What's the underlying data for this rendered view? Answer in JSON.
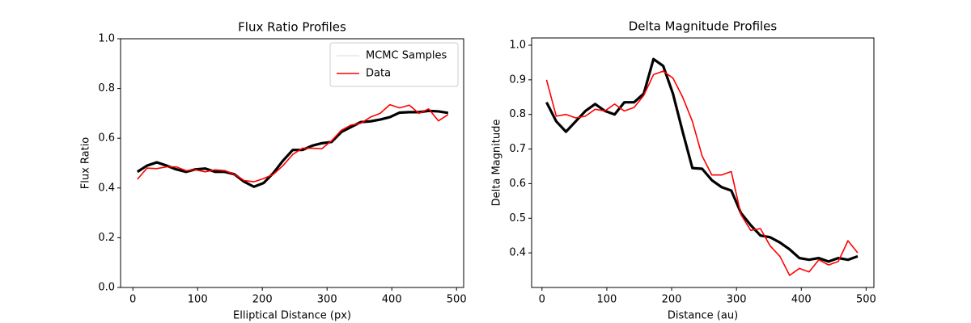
{
  "chart_data": [
    {
      "type": "line",
      "title": "Flux Ratio Profiles",
      "xlabel": "Elliptical Distance (px)",
      "ylabel": "Flux Ratio",
      "xlim": [
        -19,
        511
      ],
      "ylim": [
        0,
        1
      ],
      "xticks": [
        0,
        100,
        200,
        300,
        400,
        500
      ],
      "yticks": [
        {
          "value": 0,
          "label": "0.0"
        },
        0.2,
        0.4,
        0.6,
        0.8,
        {
          "value": 1,
          "label": "1.0"
        }
      ],
      "legend": "upper right",
      "x": [
        7,
        22,
        37,
        52,
        67,
        82,
        97,
        112,
        127,
        142,
        157,
        172,
        187,
        202,
        217,
        232,
        247,
        262,
        277,
        292,
        307,
        322,
        337,
        352,
        367,
        382,
        397,
        412,
        427,
        442,
        457,
        472,
        487
      ],
      "series": [
        {
          "name": "MCMC Samples",
          "color": "#000000",
          "alpha": 0.1,
          "values": [
            0.465,
            0.49,
            0.503,
            0.49,
            0.475,
            0.465,
            0.475,
            0.478,
            0.465,
            0.465,
            0.455,
            0.425,
            0.405,
            0.42,
            0.46,
            0.51,
            0.553,
            0.553,
            0.57,
            0.58,
            0.585,
            0.625,
            0.645,
            0.665,
            0.668,
            0.675,
            0.685,
            0.703,
            0.705,
            0.705,
            0.71,
            0.708,
            0.702
          ]
        },
        {
          "name": "Data",
          "color": "#ff0000",
          "alpha": 1,
          "values": [
            0.435,
            0.48,
            0.478,
            0.485,
            0.485,
            0.47,
            0.473,
            0.465,
            0.473,
            0.47,
            0.455,
            0.43,
            0.425,
            0.438,
            0.455,
            0.49,
            0.535,
            0.56,
            0.56,
            0.558,
            0.59,
            0.632,
            0.653,
            0.66,
            0.685,
            0.7,
            0.735,
            0.722,
            0.733,
            0.7,
            0.718,
            0.67,
            0.695
          ]
        }
      ]
    },
    {
      "type": "line",
      "title": "Delta Magnitude Profiles",
      "xlabel": "Distance (au)",
      "ylabel": "Delta Magnitude",
      "xlim": [
        -16,
        512
      ],
      "ylim": [
        0.3,
        1.021
      ],
      "xticks": [
        0,
        100,
        200,
        300,
        400,
        500
      ],
      "yticks": [
        0.4,
        0.5,
        0.6,
        0.7,
        0.8,
        0.9,
        {
          "value": 1,
          "label": "1.0"
        }
      ],
      "x": [
        7,
        22,
        37,
        52,
        67,
        82,
        97,
        112,
        127,
        142,
        157,
        172,
        187,
        202,
        217,
        232,
        247,
        262,
        277,
        292,
        307,
        322,
        337,
        352,
        367,
        382,
        397,
        412,
        427,
        442,
        457,
        472,
        487
      ],
      "series": [
        {
          "color": "#000000",
          "alpha": 0.1,
          "values": [
            0.835,
            0.78,
            0.75,
            0.78,
            0.81,
            0.83,
            0.81,
            0.8,
            0.835,
            0.835,
            0.86,
            0.96,
            0.94,
            0.86,
            0.75,
            0.645,
            0.643,
            0.61,
            0.59,
            0.58,
            0.515,
            0.48,
            0.45,
            0.445,
            0.43,
            0.41,
            0.385,
            0.38,
            0.385,
            0.375,
            0.385,
            0.38,
            0.39
          ]
        },
        {
          "color": "#ff0000",
          "alpha": 1,
          "values": [
            0.9,
            0.795,
            0.8,
            0.79,
            0.795,
            0.815,
            0.81,
            0.83,
            0.81,
            0.82,
            0.855,
            0.915,
            0.925,
            0.905,
            0.85,
            0.78,
            0.68,
            0.625,
            0.625,
            0.635,
            0.51,
            0.465,
            0.47,
            0.42,
            0.39,
            0.335,
            0.355,
            0.345,
            0.38,
            0.365,
            0.375,
            0.435,
            0.4
          ]
        }
      ]
    }
  ]
}
